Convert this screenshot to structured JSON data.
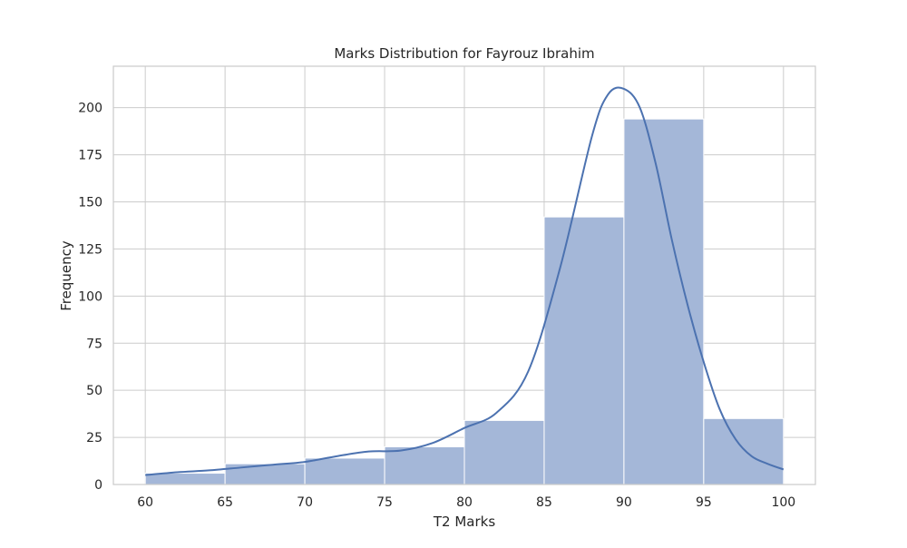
{
  "chart_data": {
    "type": "bar",
    "title": "Marks Distribution for Fayrouz Ibrahim",
    "xlabel": "T2 Marks",
    "ylabel": "Frequency",
    "bin_edges": [
      60,
      65,
      70,
      75,
      80,
      85,
      90,
      95,
      100
    ],
    "values": [
      6,
      11,
      14,
      20,
      34,
      142,
      194,
      35
    ],
    "xlim": [
      58,
      102
    ],
    "ylim": [
      0,
      222
    ],
    "xticks": [
      "60",
      "65",
      "70",
      "75",
      "80",
      "85",
      "90",
      "95",
      "100"
    ],
    "yticks": [
      "0",
      "25",
      "50",
      "75",
      "100",
      "125",
      "150",
      "175",
      "200"
    ],
    "kde": {
      "x": [
        60,
        62,
        64,
        66,
        68,
        70,
        72,
        74,
        76,
        78,
        80,
        82,
        84,
        86,
        88,
        89,
        90,
        91,
        92,
        93,
        94,
        95,
        96,
        97,
        98,
        99,
        100
      ],
      "y": [
        5,
        6.5,
        7.5,
        9,
        10.5,
        12,
        15,
        17.5,
        18,
        22,
        30,
        38,
        60,
        115,
        185,
        207,
        210,
        200,
        170,
        130,
        95,
        65,
        40,
        24,
        15,
        11,
        8
      ]
    },
    "grid": true,
    "legend": "none",
    "colors": {
      "bar_fill": "#a4b7d8",
      "bar_edge": "#ffffff",
      "kde_line": "#4c72b0",
      "grid": "#cccccc",
      "frame": "#cccccc"
    }
  }
}
